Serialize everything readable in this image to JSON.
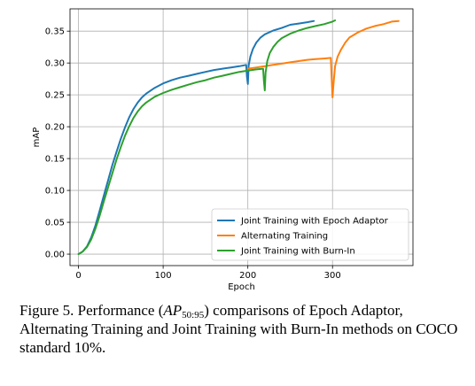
{
  "chart_data": {
    "type": "line",
    "title": "",
    "xlabel": "Epoch",
    "ylabel": "mAP",
    "xlim": [
      -10,
      395
    ],
    "ylim": [
      -0.018,
      0.385
    ],
    "grid": true,
    "legend_position": "lower-right",
    "x_ticks": [
      0,
      100,
      200,
      300
    ],
    "x_tick_labels": [
      "0",
      "100",
      "200",
      "300"
    ],
    "y_ticks": [
      0.0,
      0.05,
      0.1,
      0.15,
      0.2,
      0.25,
      0.3,
      0.35
    ],
    "y_tick_labels": [
      "0.00",
      "0.05",
      "0.10",
      "0.15",
      "0.20",
      "0.25",
      "0.30",
      "0.35"
    ],
    "series": [
      {
        "name": "Joint Training with Epoch Adaptor",
        "color": "#1f77b4",
        "points": [
          [
            0,
            0.0
          ],
          [
            5,
            0.004
          ],
          [
            10,
            0.012
          ],
          [
            15,
            0.026
          ],
          [
            20,
            0.045
          ],
          [
            25,
            0.068
          ],
          [
            30,
            0.092
          ],
          [
            35,
            0.116
          ],
          [
            40,
            0.14
          ],
          [
            45,
            0.161
          ],
          [
            50,
            0.181
          ],
          [
            55,
            0.199
          ],
          [
            60,
            0.215
          ],
          [
            65,
            0.228
          ],
          [
            70,
            0.238
          ],
          [
            75,
            0.246
          ],
          [
            80,
            0.252
          ],
          [
            90,
            0.261
          ],
          [
            100,
            0.268
          ],
          [
            110,
            0.273
          ],
          [
            120,
            0.277
          ],
          [
            130,
            0.28
          ],
          [
            140,
            0.283
          ],
          [
            150,
            0.286
          ],
          [
            160,
            0.289
          ],
          [
            170,
            0.291
          ],
          [
            180,
            0.293
          ],
          [
            190,
            0.295
          ],
          [
            198,
            0.297
          ],
          [
            199,
            0.278
          ],
          [
            200,
            0.267
          ],
          [
            201,
            0.296
          ],
          [
            203,
            0.31
          ],
          [
            206,
            0.322
          ],
          [
            210,
            0.332
          ],
          [
            215,
            0.34
          ],
          [
            220,
            0.345
          ],
          [
            230,
            0.351
          ],
          [
            240,
            0.355
          ],
          [
            250,
            0.36
          ],
          [
            260,
            0.362
          ],
          [
            270,
            0.364
          ],
          [
            278,
            0.366
          ]
        ]
      },
      {
        "name": "Alternating Training",
        "color": "#ff7f0e",
        "points": [
          [
            200,
            0.291
          ],
          [
            210,
            0.293
          ],
          [
            220,
            0.295
          ],
          [
            230,
            0.297
          ],
          [
            240,
            0.299
          ],
          [
            250,
            0.301
          ],
          [
            260,
            0.303
          ],
          [
            270,
            0.305
          ],
          [
            280,
            0.306
          ],
          [
            290,
            0.307
          ],
          [
            298,
            0.308
          ],
          [
            299,
            0.275
          ],
          [
            300,
            0.246
          ],
          [
            301,
            0.265
          ],
          [
            303,
            0.295
          ],
          [
            306,
            0.31
          ],
          [
            310,
            0.321
          ],
          [
            315,
            0.332
          ],
          [
            320,
            0.34
          ],
          [
            330,
            0.348
          ],
          [
            340,
            0.354
          ],
          [
            350,
            0.358
          ],
          [
            360,
            0.361
          ],
          [
            370,
            0.365
          ],
          [
            378,
            0.366
          ]
        ]
      },
      {
        "name": "Joint Training with Burn-In",
        "color": "#2ca02c",
        "points": [
          [
            0,
            0.0
          ],
          [
            5,
            0.004
          ],
          [
            10,
            0.011
          ],
          [
            15,
            0.023
          ],
          [
            20,
            0.04
          ],
          [
            25,
            0.06
          ],
          [
            30,
            0.083
          ],
          [
            35,
            0.105
          ],
          [
            40,
            0.127
          ],
          [
            45,
            0.149
          ],
          [
            50,
            0.168
          ],
          [
            55,
            0.186
          ],
          [
            60,
            0.201
          ],
          [
            65,
            0.214
          ],
          [
            70,
            0.224
          ],
          [
            75,
            0.232
          ],
          [
            80,
            0.238
          ],
          [
            90,
            0.247
          ],
          [
            100,
            0.253
          ],
          [
            110,
            0.258
          ],
          [
            120,
            0.262
          ],
          [
            130,
            0.266
          ],
          [
            140,
            0.27
          ],
          [
            150,
            0.273
          ],
          [
            160,
            0.277
          ],
          [
            170,
            0.28
          ],
          [
            180,
            0.283
          ],
          [
            190,
            0.286
          ],
          [
            200,
            0.288
          ],
          [
            210,
            0.29
          ],
          [
            218,
            0.291
          ],
          [
            219,
            0.272
          ],
          [
            220,
            0.257
          ],
          [
            221,
            0.285
          ],
          [
            223,
            0.303
          ],
          [
            226,
            0.316
          ],
          [
            230,
            0.325
          ],
          [
            235,
            0.333
          ],
          [
            240,
            0.339
          ],
          [
            250,
            0.346
          ],
          [
            260,
            0.351
          ],
          [
            270,
            0.355
          ],
          [
            280,
            0.358
          ],
          [
            290,
            0.361
          ],
          [
            300,
            0.365
          ],
          [
            303,
            0.367
          ]
        ]
      }
    ]
  },
  "caption": {
    "prefix": "Figure 5. Performance (",
    "math_base": "AP",
    "math_sub": "50:95",
    "suffix": ") comparisons of Epoch Adaptor, Alternating Training and Joint Training with Burn-In methods on COCO standard 10%."
  }
}
